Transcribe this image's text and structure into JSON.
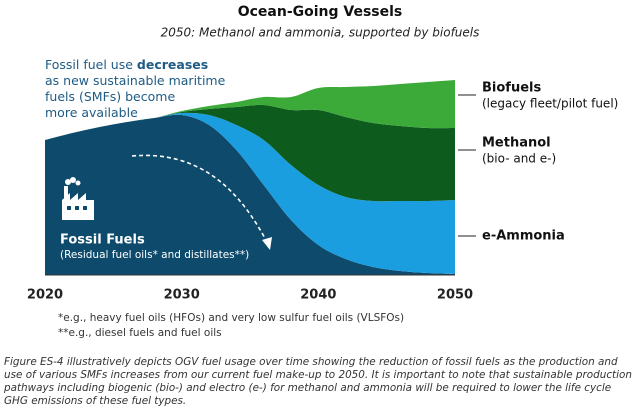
{
  "chart_data": {
    "type": "stacked-area",
    "title": "Ocean-Going Vessels",
    "subtitle": "2050: Methanol and ammonia, supported by biofuels",
    "annotation": [
      "Fossil fuel use",
      "decreases",
      "as new sustainable maritime",
      "fuels (SMFs) become",
      "more available"
    ],
    "x": [
      2020,
      2022,
      2024,
      2026,
      2028,
      2030,
      2032,
      2034,
      2036,
      2038,
      2040,
      2042,
      2044,
      2046,
      2048,
      2050
    ],
    "xlim": [
      2020,
      2050
    ],
    "xticks": [
      2020,
      2030,
      2040,
      2050
    ],
    "series": [
      {
        "name": "Fossil Fuels",
        "sublabel": "(Residual fuel oils* and distillates**)",
        "color": "#0d4a6b",
        "values": [
          135,
          142,
          148,
          153,
          157,
          160,
          150,
          125,
          90,
          55,
          30,
          16,
          8,
          4,
          2,
          1
        ]
      },
      {
        "name": "e-Ammonia",
        "color": "#1b9ee0",
        "values": [
          0,
          0,
          0,
          0,
          0,
          2,
          10,
          25,
          45,
          55,
          60,
          62,
          66,
          70,
          72,
          74
        ]
      },
      {
        "name": "Methanol",
        "sublabel": "(bio- and e-)",
        "color": "#0e5c1d",
        "values": [
          0,
          0,
          0,
          0,
          0,
          1,
          6,
          18,
          35,
          55,
          75,
          80,
          78,
          75,
          73,
          72
        ]
      },
      {
        "name": "Biofuels",
        "sublabel": "(legacy fleet/pilot fuel)",
        "color": "#3caa38",
        "values": [
          0,
          0,
          0,
          0,
          0,
          1,
          3,
          5,
          8,
          13,
          22,
          30,
          37,
          42,
          46,
          48
        ]
      }
    ],
    "footnotes": [
      "*e.g., heavy fuel oils (HFOs) and very low sulfur fuel oils (VLSFOs)",
      "**e.g., diesel fuels and fuel oils"
    ],
    "caption": "Figure ES-4 illustratively depicts OGV fuel usage over time showing the reduction of fossil fuels as the production and use of various SMFs increases from our current fuel make-up to 2050. It is important to note that sustainable production pathways including biogenic (bio-) and electro (e-) for methanol and ammonia will be required to lower the life cycle GHG emissions of these fuel types."
  }
}
